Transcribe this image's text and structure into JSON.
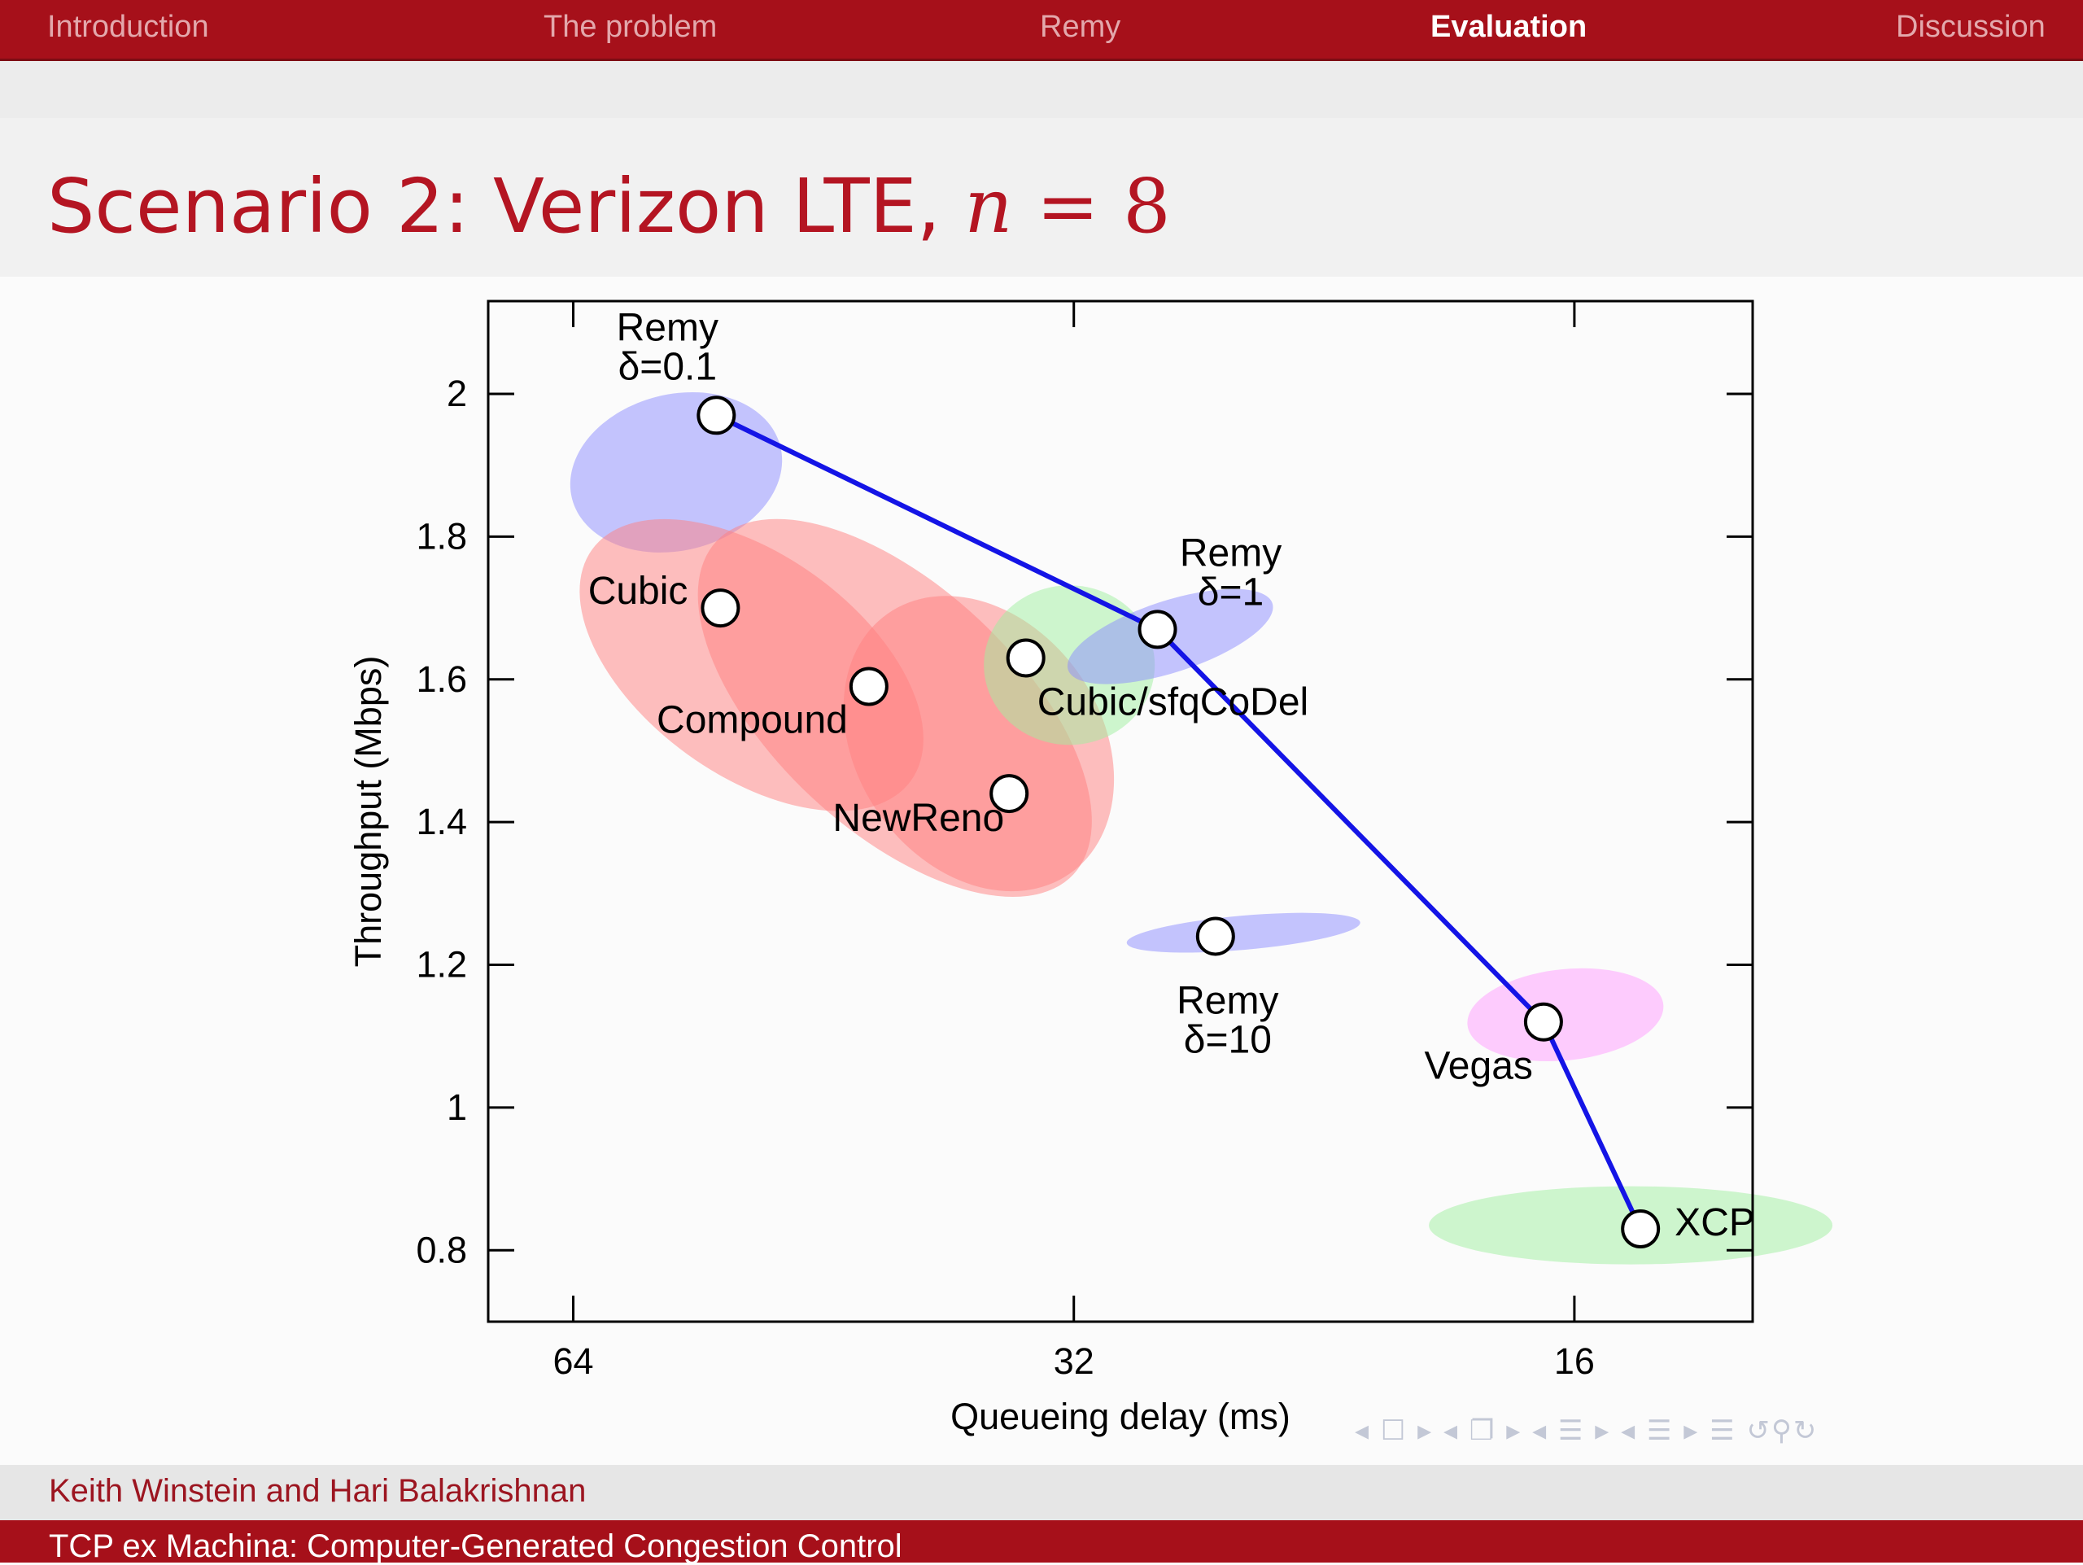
{
  "nav": {
    "items": [
      {
        "label": "Introduction",
        "active": false
      },
      {
        "label": "The problem",
        "active": false
      },
      {
        "label": "Remy",
        "active": false
      },
      {
        "label": "Evaluation",
        "active": true
      },
      {
        "label": "Discussion",
        "active": false
      }
    ]
  },
  "frame": {
    "title_prefix": "Scenario 2: Verizon LTE, ",
    "title_var": "n",
    "title_eq": " = 8"
  },
  "footer": {
    "authors": "Keith Winstein and Hari Balakrishnan",
    "talk_title": "TCP ex Machina: Computer-Generated Congestion Control"
  },
  "controls": {
    "icons": [
      "frame-nav-icon",
      "subsection-nav-icon",
      "section-nav-icon",
      "slide-nav-icon",
      "toc-icon",
      "search-icon"
    ]
  },
  "colors": {
    "nav_bg": "#a6101a",
    "title": "#b41522",
    "frontier_line": "#1414e6",
    "remy_ellipse": "#8c8cff",
    "reno_ellipse": "#ff7f7f",
    "codel_ellipse": "#9ff09f",
    "vegas_ellipse": "#ff9cff"
  },
  "chart_data": {
    "type": "scatter",
    "xlabel": "Queueing delay (ms)",
    "ylabel": "Throughput (Mbps)",
    "x_scale": "log2",
    "x_reversed": true,
    "xlim": [
      72,
      12.5
    ],
    "ylim": [
      0.7,
      2.13
    ],
    "xticks": [
      64,
      32,
      16
    ],
    "yticks": [
      0.8,
      1,
      1.2,
      1.4,
      1.6,
      1.8,
      2
    ],
    "grid": false,
    "points": [
      {
        "name": "Remy δ=0.1",
        "label_lines": [
          "Remy",
          "δ=0.1"
        ],
        "x": 52.5,
        "y": 1.97,
        "ellipse_color": "remy"
      },
      {
        "name": "Cubic",
        "label_lines": [
          "Cubic"
        ],
        "x": 52.2,
        "y": 1.7,
        "ellipse_color": "reno"
      },
      {
        "name": "Compound",
        "label_lines": [
          "Compound"
        ],
        "x": 42.5,
        "y": 1.59,
        "ellipse_color": "reno"
      },
      {
        "name": "NewReno",
        "label_lines": [
          "NewReno"
        ],
        "x": 35.0,
        "y": 1.44,
        "ellipse_color": "reno"
      },
      {
        "name": "Cubic/sfqCoDel",
        "label_lines": [
          "Cubic/sfqCoDel"
        ],
        "x": 34.2,
        "y": 1.63,
        "ellipse_color": "codel"
      },
      {
        "name": "Remy δ=1",
        "label_lines": [
          "Remy",
          "δ=1"
        ],
        "x": 28.5,
        "y": 1.67,
        "ellipse_color": "remy"
      },
      {
        "name": "Remy δ=10",
        "label_lines": [
          "Remy",
          "δ=10"
        ],
        "x": 26.3,
        "y": 1.24,
        "ellipse_color": "remy"
      },
      {
        "name": "Vegas",
        "label_lines": [
          "Vegas"
        ],
        "x": 16.7,
        "y": 1.12,
        "ellipse_color": "vegas"
      },
      {
        "name": "XCP",
        "label_lines": [
          "XCP"
        ],
        "x": 14.6,
        "y": 0.83,
        "ellipse_color": "codel"
      }
    ],
    "frontier": {
      "name": "Remy frontier",
      "x": [
        52.5,
        28.5,
        16.7,
        14.6
      ],
      "y": [
        1.97,
        1.67,
        1.12,
        0.83
      ]
    }
  }
}
